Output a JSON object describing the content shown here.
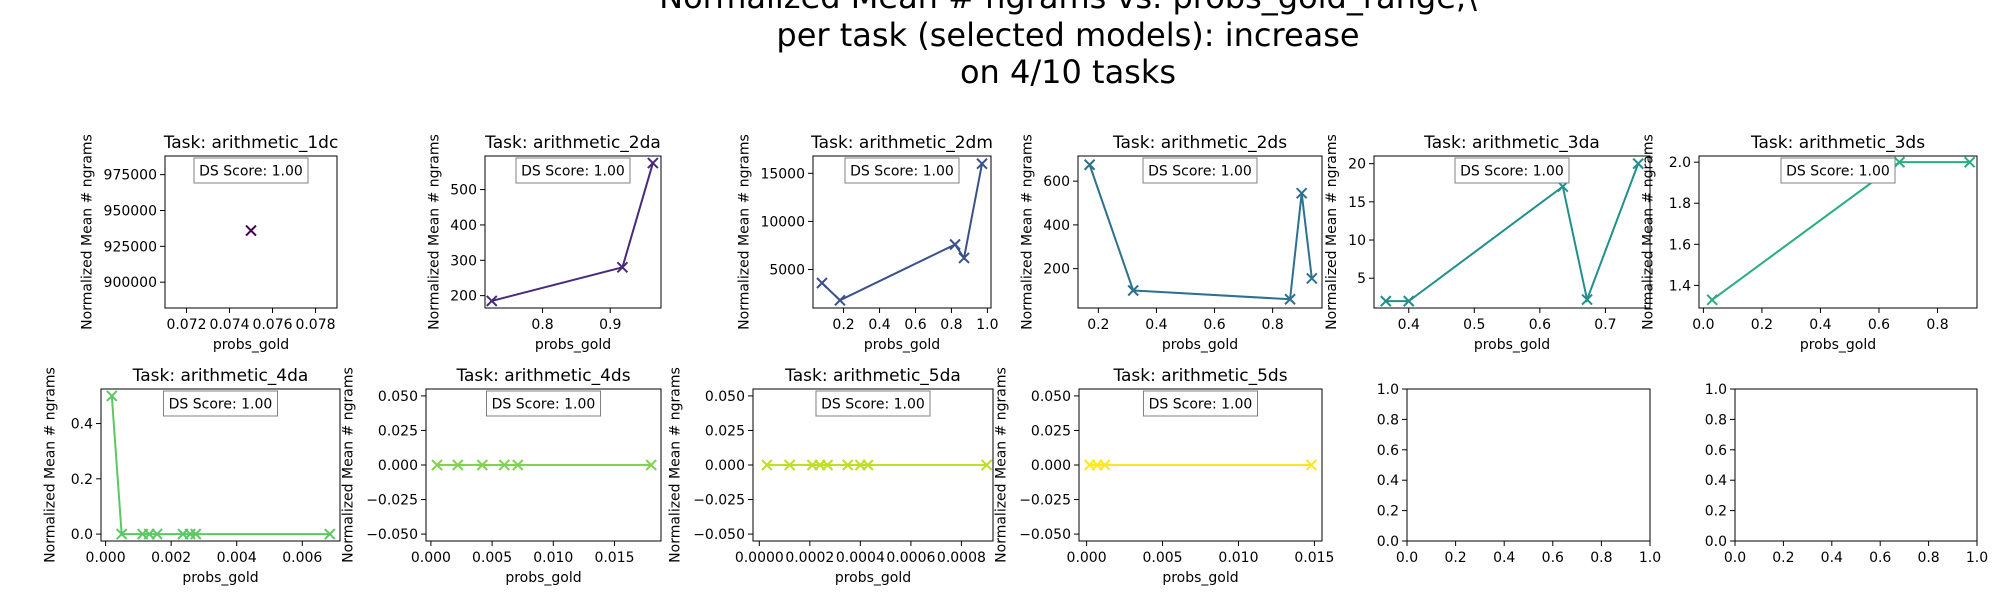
{
  "figure": {
    "title_lines": [
      "Normalized Mean # ngrams vs. probs_gold_range,\\",
      "per task (selected models): increase",
      "on 4/10 tasks"
    ]
  },
  "chart_data": [
    {
      "type": "line",
      "title": "Task: arithmetic_1dc",
      "xlabel": "probs_gold",
      "ylabel": "Normalized Mean # ngrams",
      "annotation": "DS Score: 1.00",
      "color": "#440154",
      "xlim": [
        0.071,
        0.079
      ],
      "ylim": [
        882000,
        988000
      ],
      "xticks": [
        0.072,
        0.074,
        0.076,
        0.078
      ],
      "xtick_labels": [
        "0.072",
        "0.074",
        "0.076",
        "0.078"
      ],
      "yticks": [
        900000,
        925000,
        950000,
        975000
      ],
      "ytick_labels": [
        "900000",
        "925000",
        "950000",
        "975000"
      ],
      "x": [
        0.075
      ],
      "y": [
        936000
      ]
    },
    {
      "type": "line",
      "title": "Task: arithmetic_2da",
      "xlabel": "probs_gold",
      "ylabel": "Normalized Mean # ngrams",
      "annotation": "DS Score: 1.00",
      "color": "#472a7a",
      "xlim": [
        0.715,
        0.975
      ],
      "ylim": [
        165,
        595
      ],
      "xticks": [
        0.8,
        0.9
      ],
      "xtick_labels": [
        "0.8",
        "0.9"
      ],
      "yticks": [
        200,
        300,
        400,
        500
      ],
      "ytick_labels": [
        "200",
        "300",
        "400",
        "500"
      ],
      "x": [
        0.725,
        0.918,
        0.963
      ],
      "y": [
        185,
        280,
        575
      ]
    },
    {
      "type": "line",
      "title": "Task: arithmetic_2dm",
      "xlabel": "probs_gold",
      "ylabel": "Normalized Mean # ngrams",
      "annotation": "DS Score: 1.00",
      "color": "#3b518b",
      "xlim": [
        0.03,
        1.02
      ],
      "ylim": [
        1000,
        16800
      ],
      "xticks": [
        0.0,
        0.2,
        0.4,
        0.6,
        0.8,
        1.0
      ],
      "xtick_labels": [
        "0.0",
        "0.2",
        "0.4",
        "0.6",
        "0.8",
        "1.0"
      ],
      "yticks": [
        5000,
        10000,
        15000
      ],
      "ytick_labels": [
        "5000",
        "10000",
        "15000"
      ],
      "x": [
        0.08,
        0.18,
        0.82,
        0.87,
        0.97
      ],
      "y": [
        3600,
        1800,
        7600,
        6200,
        16000
      ]
    },
    {
      "type": "line",
      "title": "Task: arithmetic_2ds",
      "xlabel": "probs_gold",
      "ylabel": "Normalized Mean # ngrams",
      "annotation": "DS Score: 1.00",
      "color": "#2c718e",
      "xlim": [
        0.13,
        0.97
      ],
      "ylim": [
        20,
        715
      ],
      "xticks": [
        0.2,
        0.4,
        0.6,
        0.8
      ],
      "xtick_labels": [
        "0.2",
        "0.4",
        "0.6",
        "0.8"
      ],
      "yticks": [
        200,
        400,
        600
      ],
      "ytick_labels": [
        "200",
        "400",
        "600"
      ],
      "x": [
        0.17,
        0.32,
        0.86,
        0.9,
        0.935
      ],
      "y": [
        675,
        100,
        60,
        545,
        155
      ]
    },
    {
      "type": "line",
      "title": "Task: arithmetic_3da",
      "xlabel": "probs_gold",
      "ylabel": "Normalized Mean # ngrams",
      "annotation": "DS Score: 1.00",
      "color": "#21908d",
      "xlim": [
        0.347,
        0.768
      ],
      "ylim": [
        1.1,
        21.0
      ],
      "xticks": [
        0.4,
        0.5,
        0.6,
        0.7
      ],
      "xtick_labels": [
        "0.4",
        "0.5",
        "0.6",
        "0.7"
      ],
      "yticks": [
        5,
        10,
        15,
        20
      ],
      "ytick_labels": [
        "5",
        "10",
        "15",
        "20"
      ],
      "x": [
        0.365,
        0.4,
        0.635,
        0.672,
        0.75
      ],
      "y": [
        2,
        2,
        17,
        2.2,
        20
      ]
    },
    {
      "type": "line",
      "title": "Task: arithmetic_3ds",
      "xlabel": "probs_gold",
      "ylabel": "Normalized Mean # ngrams",
      "annotation": "DS Score: 1.00",
      "color": "#27ad81",
      "xlim": [
        -0.015,
        0.935
      ],
      "ylim": [
        1.29,
        2.03
      ],
      "xticks": [
        0.0,
        0.2,
        0.4,
        0.6,
        0.8
      ],
      "xtick_labels": [
        "0.0",
        "0.2",
        "0.4",
        "0.6",
        "0.8"
      ],
      "yticks": [
        1.4,
        1.6,
        1.8,
        2.0
      ],
      "ytick_labels": [
        "1.4",
        "1.6",
        "1.8",
        "2.0"
      ],
      "x": [
        0.03,
        0.67,
        0.91
      ],
      "y": [
        1.33,
        2.0,
        2.0
      ]
    },
    {
      "type": "line",
      "title": "Task: arithmetic_4da",
      "xlabel": "probs_gold",
      "ylabel": "Normalized Mean # ngrams",
      "annotation": "DS Score: 1.00",
      "color": "#5cc863",
      "xlim": [
        -0.00014,
        0.00715
      ],
      "ylim": [
        -0.025,
        0.525
      ],
      "xticks": [
        0.0,
        0.002,
        0.004,
        0.006
      ],
      "xtick_labels": [
        "0.000",
        "0.002",
        "0.004",
        "0.006"
      ],
      "yticks": [
        0.0,
        0.2,
        0.4
      ],
      "ytick_labels": [
        "0.0",
        "0.2",
        "0.4"
      ],
      "x": [
        0.00019,
        0.00049,
        0.00113,
        0.00133,
        0.00157,
        0.00236,
        0.00258,
        0.00275,
        0.00684
      ],
      "y": [
        0.5,
        0,
        0,
        0,
        0,
        0,
        0,
        0,
        0
      ]
    },
    {
      "type": "line",
      "title": "Task: arithmetic_4ds",
      "xlabel": "probs_gold",
      "ylabel": "Normalized Mean # ngrams",
      "annotation": "DS Score: 1.00",
      "color": "#7fd34e",
      "xlim": [
        -0.0004,
        0.0188
      ],
      "ylim": [
        -0.055,
        0.055
      ],
      "xticks": [
        0.0,
        0.005,
        0.01,
        0.015
      ],
      "xtick_labels": [
        "0.000",
        "0.005",
        "0.010",
        "0.015"
      ],
      "yticks": [
        -0.05,
        -0.025,
        0.0,
        0.025,
        0.05
      ],
      "ytick_labels": [
        "−0.050",
        "−0.025",
        "0.000",
        "0.025",
        "0.050"
      ],
      "x": [
        0.0005,
        0.0022,
        0.0042,
        0.006,
        0.0071,
        0.018
      ],
      "y": [
        0,
        0,
        0,
        0,
        0,
        0
      ]
    },
    {
      "type": "line",
      "title": "Task: arithmetic_5da",
      "xlabel": "probs_gold",
      "ylabel": "Normalized Mean # ngrams",
      "annotation": "DS Score: 1.00",
      "color": "#bddf26",
      "xlim": [
        -2.5e-05,
        0.000925
      ],
      "ylim": [
        -0.055,
        0.055
      ],
      "xticks": [
        0.0,
        0.0002,
        0.0004,
        0.0006,
        0.0008
      ],
      "xtick_labels": [
        "0.0000",
        "0.0002",
        "0.0004",
        "0.0006",
        "0.0008"
      ],
      "yticks": [
        -0.05,
        -0.025,
        0.0,
        0.025,
        0.05
      ],
      "ytick_labels": [
        "−0.050",
        "−0.025",
        "0.000",
        "0.025",
        "0.050"
      ],
      "x": [
        3e-05,
        0.00012,
        0.00021,
        0.00024,
        0.00027,
        0.00035,
        0.0004,
        0.00043,
        0.0009
      ],
      "y": [
        0,
        0,
        0,
        0,
        0,
        0,
        0,
        0,
        0
      ]
    },
    {
      "type": "line",
      "title": "Task: arithmetic_5ds",
      "xlabel": "probs_gold",
      "ylabel": "Normalized Mean # ngrams",
      "annotation": "DS Score: 1.00",
      "color": "#fde725",
      "xlim": [
        -0.0005,
        0.0155
      ],
      "ylim": [
        -0.055,
        0.055
      ],
      "xticks": [
        0.0,
        0.005,
        0.01,
        0.015
      ],
      "xtick_labels": [
        "0.000",
        "0.005",
        "0.010",
        "0.015"
      ],
      "yticks": [
        -0.05,
        -0.025,
        0.0,
        0.025,
        0.05
      ],
      "ytick_labels": [
        "−0.050",
        "−0.025",
        "0.000",
        "0.025",
        "0.050"
      ],
      "x": [
        0.0002,
        0.0007,
        0.0012,
        0.0148
      ],
      "y": [
        0,
        0,
        0,
        0
      ]
    },
    {
      "type": "empty",
      "title": "",
      "xlim": [
        0,
        1
      ],
      "ylim": [
        0,
        1
      ],
      "xticks": [
        0,
        0.2,
        0.4,
        0.6,
        0.8,
        1.0
      ],
      "xtick_labels": [
        "0.0",
        "0.2",
        "0.4",
        "0.6",
        "0.8",
        "1.0"
      ],
      "yticks": [
        0,
        0.2,
        0.4,
        0.6,
        0.8,
        1.0
      ],
      "ytick_labels": [
        "0.0",
        "0.2",
        "0.4",
        "0.6",
        "0.8",
        "1.0"
      ]
    },
    {
      "type": "empty",
      "title": "",
      "xlim": [
        0,
        1
      ],
      "ylim": [
        0,
        1
      ],
      "xticks": [
        0,
        0.2,
        0.4,
        0.6,
        0.8,
        1.0
      ],
      "xtick_labels": [
        "0.0",
        "0.2",
        "0.4",
        "0.6",
        "0.8",
        "1.0"
      ],
      "yticks": [
        0,
        0.2,
        0.4,
        0.6,
        0.8,
        1.0
      ],
      "ytick_labels": [
        "0.0",
        "0.2",
        "0.4",
        "0.6",
        "0.8",
        "1.0"
      ]
    }
  ]
}
